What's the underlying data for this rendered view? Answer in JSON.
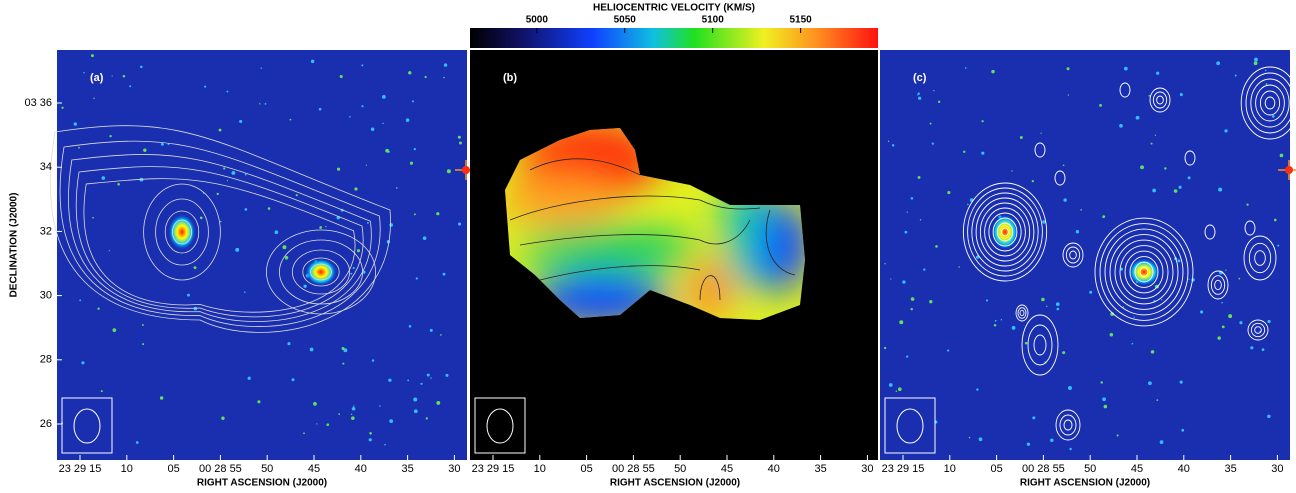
{
  "colorbar": {
    "title": "HELIOCENTRIC VELOCITY (KM/S)",
    "ticks": [
      5000,
      5050,
      5100,
      5150
    ],
    "lim": [
      4962,
      5194
    ]
  },
  "panels": [
    {
      "label": "(a)",
      "xlabel": "RIGHT ASCENSION (J2000)"
    },
    {
      "label": "(b)",
      "xlabel": "RIGHT ASCENSION (J2000)"
    },
    {
      "label": "(c)",
      "xlabel": "RIGHT ASCENSION (J2000)"
    }
  ],
  "ra_ticks": [
    "23 29 15",
    "10",
    "05",
    "00  28 55",
    "50",
    "45",
    "40",
    "35",
    "30"
  ],
  "ylabel": "DECLINATION (J2000)",
  "dec_ticks": [
    "03 36",
    "34",
    "32",
    "30",
    "28",
    "26"
  ]
}
